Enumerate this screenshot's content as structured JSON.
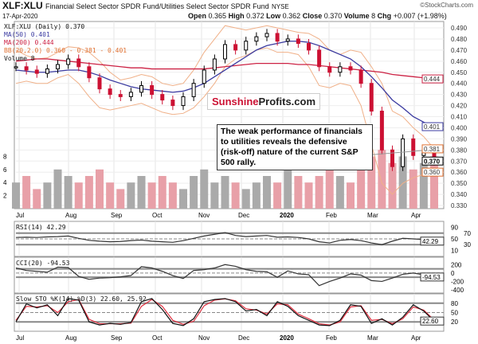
{
  "header": {
    "symbol": "XLF:XLU",
    "name": "Financial Select Sector SPDR Fund/Utilities Select Sector SPDR Fund",
    "exchange": "NYSE",
    "date": "17-Apr-2020",
    "brand": "©StockCharts.com",
    "open_label": "Open",
    "open": "0.365",
    "high_label": "High",
    "high": "0.372",
    "low_label": "Low",
    "low": "0.362",
    "close_label": "Close",
    "close": "0.370",
    "volume_label": "Volume",
    "volume": "8",
    "chg_label": "Chg",
    "chg": "+0.007 (+1.98%)"
  },
  "legend": {
    "main": "XLF:XLU (Daily) 0.370",
    "ma50": "MA(50) 0.401",
    "ma200": "MA(200) 0.444",
    "bb": "BB(20,2.0) 0.360 - 0.381 - 0.401",
    "vol": "Volume 8"
  },
  "logo": {
    "part1": "Sunshine",
    "part2": "Profits.com"
  },
  "annotation": "The weak performance of financials to utilities reveals the defensive (risk-off) nature of the current S&P 500 rally.",
  "colors": {
    "up": "#000000",
    "down": "#cc1133",
    "ma50": "#3a3aa0",
    "ma200": "#cc2244",
    "bb": "#f0b088",
    "vol_up": "#aaaaaa",
    "vol_down": "#e8a0a8"
  },
  "chart_data": [
    {
      "type": "line",
      "title": "XLF:XLU (Daily)",
      "ylim": [
        0.33,
        0.49
      ],
      "yticks": [
        "0.490",
        "0.480",
        "0.470",
        "0.460",
        "0.450",
        "0.440",
        "0.430",
        "0.420",
        "0.410",
        "0.400",
        "0.390",
        "0.380",
        "0.370",
        "0.360",
        "0.350",
        "0.340",
        "0.330"
      ],
      "ylabels_marked": {
        "ma200": "0.444",
        "ma50": "0.401",
        "bb_upper": "0.381",
        "close": "0.370",
        "bb_lower": "0.360"
      },
      "volume_ticks": [
        "8",
        "6",
        "4",
        "2"
      ],
      "xticks": [
        "Jul",
        "Aug",
        "Sep",
        "Oct",
        "Nov",
        "Dec",
        "2020",
        "Feb",
        "Mar",
        "Apr"
      ],
      "close": [
        0.455,
        0.452,
        0.449,
        0.453,
        0.457,
        0.462,
        0.455,
        0.445,
        0.435,
        0.43,
        0.428,
        0.432,
        0.438,
        0.43,
        0.425,
        0.42,
        0.428,
        0.44,
        0.452,
        0.462,
        0.475,
        0.47,
        0.478,
        0.482,
        0.485,
        0.478,
        0.48,
        0.476,
        0.47,
        0.455,
        0.45,
        0.455,
        0.452,
        0.44,
        0.415,
        0.38,
        0.365,
        0.39,
        0.375,
        0.378,
        0.37
      ],
      "ma50": [
        0.452,
        0.451,
        0.45,
        0.45,
        0.451,
        0.452,
        0.452,
        0.45,
        0.447,
        0.443,
        0.44,
        0.437,
        0.435,
        0.434,
        0.433,
        0.432,
        0.433,
        0.436,
        0.44,
        0.446,
        0.452,
        0.458,
        0.464,
        0.47,
        0.474,
        0.476,
        0.478,
        0.478,
        0.477,
        0.474,
        0.47,
        0.466,
        0.462,
        0.455,
        0.446,
        0.436,
        0.425,
        0.418,
        0.41,
        0.405,
        0.401
      ],
      "ma200": [
        0.46,
        0.461,
        0.462,
        0.462,
        0.461,
        0.46,
        0.459,
        0.458,
        0.457,
        0.456,
        0.455,
        0.454,
        0.454,
        0.453,
        0.453,
        0.453,
        0.453,
        0.453,
        0.453,
        0.454,
        0.455,
        0.456,
        0.457,
        0.458,
        0.458,
        0.458,
        0.458,
        0.457,
        0.457,
        0.456,
        0.455,
        0.454,
        0.453,
        0.452,
        0.451,
        0.45,
        0.448,
        0.447,
        0.446,
        0.445,
        0.444
      ],
      "bb_upper": [
        0.47,
        0.465,
        0.462,
        0.463,
        0.468,
        0.473,
        0.472,
        0.468,
        0.46,
        0.45,
        0.443,
        0.445,
        0.448,
        0.446,
        0.44,
        0.438,
        0.44,
        0.452,
        0.468,
        0.48,
        0.492,
        0.49,
        0.488,
        0.49,
        0.492,
        0.49,
        0.488,
        0.486,
        0.485,
        0.48,
        0.47,
        0.466,
        0.47,
        0.468,
        0.455,
        0.44,
        0.415,
        0.41,
        0.4,
        0.392,
        0.381
      ],
      "bb_lower": [
        0.44,
        0.442,
        0.44,
        0.44,
        0.445,
        0.448,
        0.44,
        0.428,
        0.418,
        0.416,
        0.418,
        0.42,
        0.422,
        0.418,
        0.414,
        0.412,
        0.413,
        0.418,
        0.428,
        0.44,
        0.455,
        0.462,
        0.465,
        0.47,
        0.472,
        0.468,
        0.468,
        0.466,
        0.455,
        0.438,
        0.436,
        0.44,
        0.438,
        0.42,
        0.385,
        0.35,
        0.34,
        0.35,
        0.355,
        0.358,
        0.36
      ],
      "volume": [
        4,
        5,
        3,
        4,
        6,
        5,
        4,
        5,
        6,
        4,
        3,
        4,
        5,
        4,
        5,
        4,
        3,
        5,
        6,
        4,
        5,
        4,
        3,
        4,
        5,
        4,
        6,
        5,
        4,
        5,
        6,
        5,
        4,
        6,
        8,
        9,
        7,
        8,
        6,
        7,
        8
      ]
    },
    {
      "type": "line",
      "title": "RSI(14) 42.29",
      "ylim": [
        0,
        100
      ],
      "yticks": [
        "90",
        "70",
        "50",
        "30",
        "10"
      ],
      "last": "42.29",
      "values": [
        55,
        56,
        55,
        57,
        58,
        60,
        52,
        45,
        42,
        40,
        41,
        44,
        46,
        42,
        40,
        38,
        44,
        52,
        60,
        66,
        72,
        62,
        58,
        60,
        62,
        56,
        57,
        55,
        50,
        40,
        36,
        45,
        48,
        44,
        36,
        30,
        42,
        52,
        50,
        48,
        42.29
      ]
    },
    {
      "type": "line",
      "title": "CCI(20) -94.53",
      "ylim": [
        -400,
        300
      ],
      "yticks": [
        "200",
        "0",
        "-200",
        "-400"
      ],
      "last": "-94.53",
      "values": [
        120,
        60,
        40,
        20,
        140,
        130,
        -80,
        -150,
        -120,
        -110,
        -90,
        -60,
        150,
        120,
        40,
        -60,
        -130,
        60,
        80,
        120,
        200,
        160,
        80,
        40,
        30,
        -100,
        50,
        -20,
        -40,
        -300,
        -200,
        -120,
        -20,
        -50,
        -180,
        -200,
        -120,
        -30,
        0,
        -40,
        -94.53
      ]
    },
    {
      "type": "line",
      "title": "Slow STO %K(14) %D(3) 22.60, 25.92",
      "ylim": [
        0,
        100
      ],
      "yticks": [
        "80",
        "50",
        "20"
      ],
      "last": "22.60",
      "k": [
        20,
        78,
        65,
        75,
        40,
        95,
        90,
        20,
        10,
        15,
        12,
        18,
        85,
        95,
        60,
        15,
        8,
        30,
        85,
        92,
        95,
        85,
        55,
        60,
        40,
        85,
        70,
        40,
        25,
        10,
        8,
        25,
        75,
        70,
        15,
        30,
        10,
        35,
        75,
        55,
        22.6
      ],
      "d": [
        25,
        70,
        68,
        72,
        50,
        85,
        92,
        28,
        14,
        14,
        14,
        16,
        70,
        92,
        70,
        25,
        12,
        22,
        72,
        90,
        94,
        88,
        62,
        58,
        45,
        78,
        75,
        45,
        30,
        14,
        10,
        20,
        68,
        72,
        25,
        28,
        14,
        30,
        68,
        58,
        25.92
      ]
    }
  ]
}
